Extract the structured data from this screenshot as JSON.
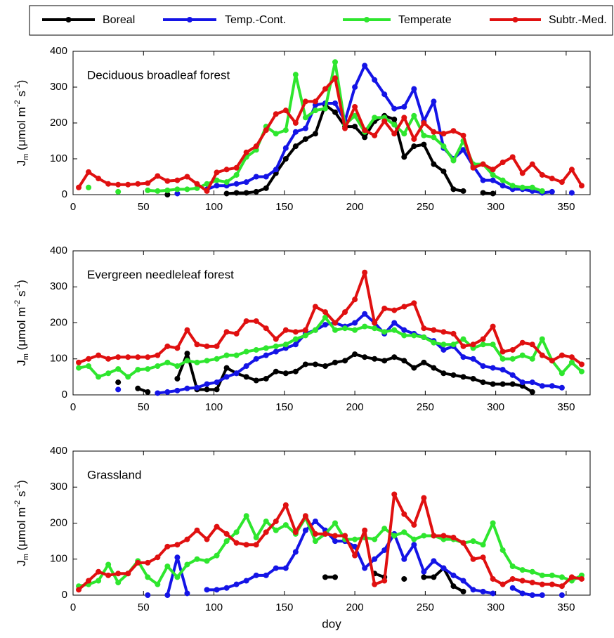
{
  "chart_data": [
    {
      "type": "line",
      "title": "Deciduous broadleaf forest",
      "ylabel": [
        "J",
        "m",
        " (μmol m",
        "-2",
        " s",
        "-1",
        ")"
      ],
      "x": [
        4,
        11,
        18,
        25,
        32,
        39,
        46,
        53,
        60,
        67,
        74,
        81,
        88,
        95,
        102,
        109,
        116,
        123,
        130,
        137,
        144,
        151,
        158,
        165,
        172,
        179,
        186,
        193,
        200,
        207,
        214,
        221,
        228,
        235,
        242,
        249,
        256,
        263,
        270,
        277,
        284,
        291,
        298,
        305,
        312,
        319,
        326,
        333,
        340,
        347,
        354,
        361
      ],
      "xlim": [
        0,
        367
      ],
      "xticks": [
        0,
        50,
        100,
        150,
        200,
        250,
        300,
        350
      ],
      "ylim": [
        0,
        400
      ],
      "yticks": [
        0,
        100,
        200,
        300,
        400
      ],
      "series": [
        {
          "name": "Boreal",
          "color": "#000000",
          "values": [
            null,
            null,
            null,
            null,
            null,
            null,
            null,
            null,
            null,
            0,
            null,
            null,
            null,
            null,
            null,
            3,
            5,
            5,
            8,
            18,
            60,
            100,
            135,
            155,
            170,
            250,
            230,
            190,
            190,
            160,
            205,
            220,
            210,
            105,
            135,
            140,
            85,
            65,
            15,
            10,
            null,
            5,
            3,
            null,
            null,
            null,
            null,
            null,
            null,
            null,
            null,
            null
          ]
        },
        {
          "name": "Temp.-Cont.",
          "color": "#1414e6",
          "values": [
            null,
            null,
            null,
            null,
            null,
            null,
            null,
            null,
            null,
            null,
            3,
            null,
            null,
            15,
            25,
            25,
            30,
            35,
            50,
            50,
            70,
            130,
            175,
            185,
            250,
            255,
            255,
            205,
            300,
            360,
            320,
            280,
            240,
            245,
            295,
            205,
            260,
            130,
            100,
            125,
            80,
            40,
            40,
            25,
            15,
            15,
            10,
            5,
            8,
            null,
            5,
            null
          ]
        },
        {
          "name": "Temperate",
          "color": "#2ee62e",
          "values": [
            null,
            20,
            null,
            null,
            8,
            null,
            null,
            12,
            10,
            12,
            15,
            15,
            18,
            30,
            40,
            35,
            55,
            105,
            125,
            190,
            170,
            180,
            335,
            215,
            235,
            240,
            370,
            195,
            220,
            175,
            215,
            215,
            195,
            170,
            220,
            165,
            160,
            135,
            95,
            150,
            85,
            85,
            55,
            40,
            25,
            20,
            20,
            10,
            null,
            null,
            null,
            null
          ]
        },
        {
          "name": "Subtr.-Med.",
          "color": "#e01010",
          "values": [
            20,
            63,
            45,
            30,
            28,
            28,
            30,
            32,
            52,
            38,
            40,
            50,
            30,
            10,
            62,
            70,
            75,
            118,
            135,
            180,
            225,
            235,
            200,
            260,
            260,
            295,
            325,
            185,
            245,
            180,
            165,
            205,
            170,
            215,
            155,
            200,
            175,
            170,
            178,
            165,
            75,
            85,
            70,
            90,
            105,
            60,
            85,
            55,
            45,
            35,
            70,
            25
          ]
        }
      ]
    },
    {
      "type": "line",
      "title": "Evergreen needleleaf forest",
      "ylabel": [
        "J",
        "m",
        " (μmol m",
        "-2",
        " s",
        "-1",
        ")"
      ],
      "x": [
        4,
        11,
        18,
        25,
        32,
        39,
        46,
        53,
        60,
        67,
        74,
        81,
        88,
        95,
        102,
        109,
        116,
        123,
        130,
        137,
        144,
        151,
        158,
        165,
        172,
        179,
        186,
        193,
        200,
        207,
        214,
        221,
        228,
        235,
        242,
        249,
        256,
        263,
        270,
        277,
        284,
        291,
        298,
        305,
        312,
        319,
        326,
        333,
        340,
        347,
        354,
        361
      ],
      "xlim": [
        0,
        367
      ],
      "xticks": [
        0,
        50,
        100,
        150,
        200,
        250,
        300,
        350
      ],
      "ylim": [
        0,
        400
      ],
      "yticks": [
        0,
        100,
        200,
        300,
        400
      ],
      "series": [
        {
          "name": "Boreal",
          "color": "#000000",
          "values": [
            null,
            null,
            null,
            null,
            35,
            null,
            18,
            8,
            null,
            null,
            45,
            115,
            15,
            15,
            15,
            75,
            60,
            50,
            40,
            45,
            65,
            60,
            65,
            85,
            85,
            80,
            90,
            95,
            113,
            105,
            100,
            95,
            105,
            95,
            75,
            90,
            75,
            60,
            55,
            50,
            45,
            35,
            30,
            30,
            30,
            25,
            8,
            null,
            null,
            null,
            null,
            null
          ]
        },
        {
          "name": "Temp.-Cont.",
          "color": "#1414e6",
          "values": [
            null,
            null,
            null,
            null,
            15,
            null,
            null,
            null,
            5,
            8,
            12,
            18,
            20,
            30,
            35,
            50,
            60,
            80,
            100,
            110,
            120,
            130,
            140,
            170,
            180,
            195,
            200,
            190,
            200,
            225,
            200,
            170,
            200,
            180,
            170,
            160,
            150,
            125,
            135,
            105,
            100,
            80,
            75,
            70,
            55,
            35,
            35,
            25,
            25,
            20,
            null,
            null
          ]
        },
        {
          "name": "Temperate",
          "color": "#2ee62e",
          "values": [
            75,
            80,
            50,
            60,
            72,
            50,
            70,
            72,
            80,
            90,
            80,
            95,
            90,
            95,
            100,
            110,
            110,
            120,
            125,
            130,
            135,
            140,
            155,
            165,
            180,
            215,
            180,
            185,
            180,
            190,
            185,
            175,
            180,
            165,
            165,
            160,
            145,
            140,
            140,
            155,
            130,
            140,
            140,
            100,
            100,
            110,
            100,
            155,
            95,
            60,
            90,
            65
          ]
        },
        {
          "name": "Subtr.-Med.",
          "color": "#e01010",
          "values": [
            90,
            100,
            110,
            100,
            105,
            105,
            105,
            105,
            110,
            135,
            130,
            180,
            140,
            135,
            135,
            175,
            170,
            205,
            205,
            185,
            155,
            180,
            175,
            180,
            245,
            230,
            200,
            230,
            265,
            340,
            200,
            240,
            235,
            245,
            255,
            185,
            180,
            175,
            170,
            135,
            140,
            155,
            190,
            120,
            125,
            145,
            140,
            110,
            95,
            110,
            105,
            85
          ]
        }
      ]
    },
    {
      "type": "line",
      "title": "Grassland",
      "xlabel": "doy",
      "ylabel": [
        "J",
        "m",
        " (μmol m",
        "-2",
        " s",
        "-1",
        ")"
      ],
      "x": [
        4,
        11,
        18,
        25,
        32,
        39,
        46,
        53,
        60,
        67,
        74,
        81,
        88,
        95,
        102,
        109,
        116,
        123,
        130,
        137,
        144,
        151,
        158,
        165,
        172,
        179,
        186,
        193,
        200,
        207,
        214,
        221,
        228,
        235,
        242,
        249,
        256,
        263,
        270,
        277,
        284,
        291,
        298,
        305,
        312,
        319,
        326,
        333,
        340,
        347,
        354,
        361
      ],
      "xlim": [
        0,
        367
      ],
      "xticks": [
        0,
        50,
        100,
        150,
        200,
        250,
        300,
        350
      ],
      "ylim": [
        0,
        400
      ],
      "yticks": [
        0,
        100,
        200,
        300,
        400
      ],
      "series": [
        {
          "name": "Boreal",
          "color": "#000000",
          "values": [
            null,
            null,
            null,
            null,
            null,
            null,
            null,
            null,
            null,
            null,
            null,
            null,
            null,
            null,
            null,
            null,
            null,
            null,
            null,
            null,
            null,
            null,
            null,
            null,
            null,
            50,
            50,
            null,
            null,
            null,
            60,
            50,
            null,
            45,
            null,
            50,
            50,
            75,
            25,
            10,
            null,
            null,
            null,
            null,
            null,
            null,
            null,
            null,
            null,
            null,
            null,
            null
          ]
        },
        {
          "name": "Temp.-Cont.",
          "color": "#1414e6",
          "values": [
            null,
            null,
            null,
            null,
            null,
            null,
            null,
            0,
            null,
            0,
            105,
            5,
            null,
            15,
            15,
            20,
            30,
            40,
            55,
            55,
            75,
            75,
            120,
            180,
            205,
            180,
            150,
            150,
            135,
            75,
            100,
            125,
            170,
            100,
            140,
            65,
            95,
            75,
            55,
            40,
            15,
            10,
            5,
            null,
            20,
            5,
            0,
            0,
            null,
            0,
            null,
            null
          ]
        },
        {
          "name": "Temperate",
          "color": "#2ee62e",
          "values": [
            25,
            30,
            40,
            85,
            35,
            60,
            95,
            50,
            30,
            80,
            50,
            85,
            100,
            95,
            110,
            150,
            175,
            220,
            160,
            205,
            180,
            195,
            170,
            215,
            150,
            170,
            200,
            155,
            155,
            160,
            155,
            185,
            165,
            175,
            155,
            165,
            165,
            155,
            155,
            145,
            150,
            140,
            200,
            125,
            80,
            70,
            65,
            55,
            55,
            50,
            40,
            55
          ]
        },
        {
          "name": "Subtr.-Med.",
          "color": "#e01010",
          "values": [
            15,
            40,
            65,
            55,
            60,
            60,
            90,
            90,
            105,
            135,
            140,
            155,
            180,
            155,
            190,
            170,
            145,
            140,
            140,
            175,
            205,
            250,
            175,
            220,
            170,
            170,
            165,
            165,
            110,
            180,
            30,
            40,
            280,
            225,
            195,
            270,
            165,
            165,
            160,
            145,
            100,
            105,
            45,
            30,
            45,
            40,
            35,
            30,
            30,
            25,
            50,
            45
          ]
        }
      ]
    }
  ]
}
